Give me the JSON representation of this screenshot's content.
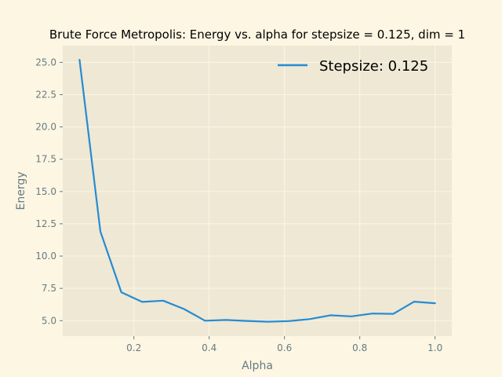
{
  "chart_data": {
    "type": "line",
    "title": "Brute Force Metropolis: Energy vs. alpha for stepsize = 0.125, dim = 1",
    "xlabel": "Alpha",
    "ylabel": "Energy",
    "xlim": [
      0.0111,
      1.0444
    ],
    "ylim": [
      3.8,
      26.3
    ],
    "xticks": [
      0.2,
      0.4,
      0.6,
      0.8,
      1.0
    ],
    "xtick_labels": [
      "0.2",
      "0.4",
      "0.6",
      "0.8",
      "1.0"
    ],
    "yticks": [
      5.0,
      7.5,
      10.0,
      12.5,
      15.0,
      17.5,
      20.0,
      22.5,
      25.0
    ],
    "ytick_labels": [
      "5.0",
      "7.5",
      "10.0",
      "12.5",
      "15.0",
      "17.5",
      "20.0",
      "22.5",
      "25.0"
    ],
    "grid": true,
    "legend": "top-right",
    "series": [
      {
        "name": "Stepsize: 0.125",
        "color": "#268bd2",
        "x": [
          0.0556,
          0.1111,
          0.1667,
          0.2222,
          0.2778,
          0.3333,
          0.3889,
          0.4444,
          0.5,
          0.5556,
          0.6111,
          0.6667,
          0.7222,
          0.7778,
          0.8333,
          0.8889,
          0.9444,
          1.0
        ],
        "y": [
          25.2,
          11.9,
          7.2,
          6.45,
          6.55,
          5.9,
          5.0,
          5.05,
          4.98,
          4.92,
          4.97,
          5.12,
          5.42,
          5.33,
          5.55,
          5.53,
          6.47,
          6.35
        ]
      }
    ]
  }
}
